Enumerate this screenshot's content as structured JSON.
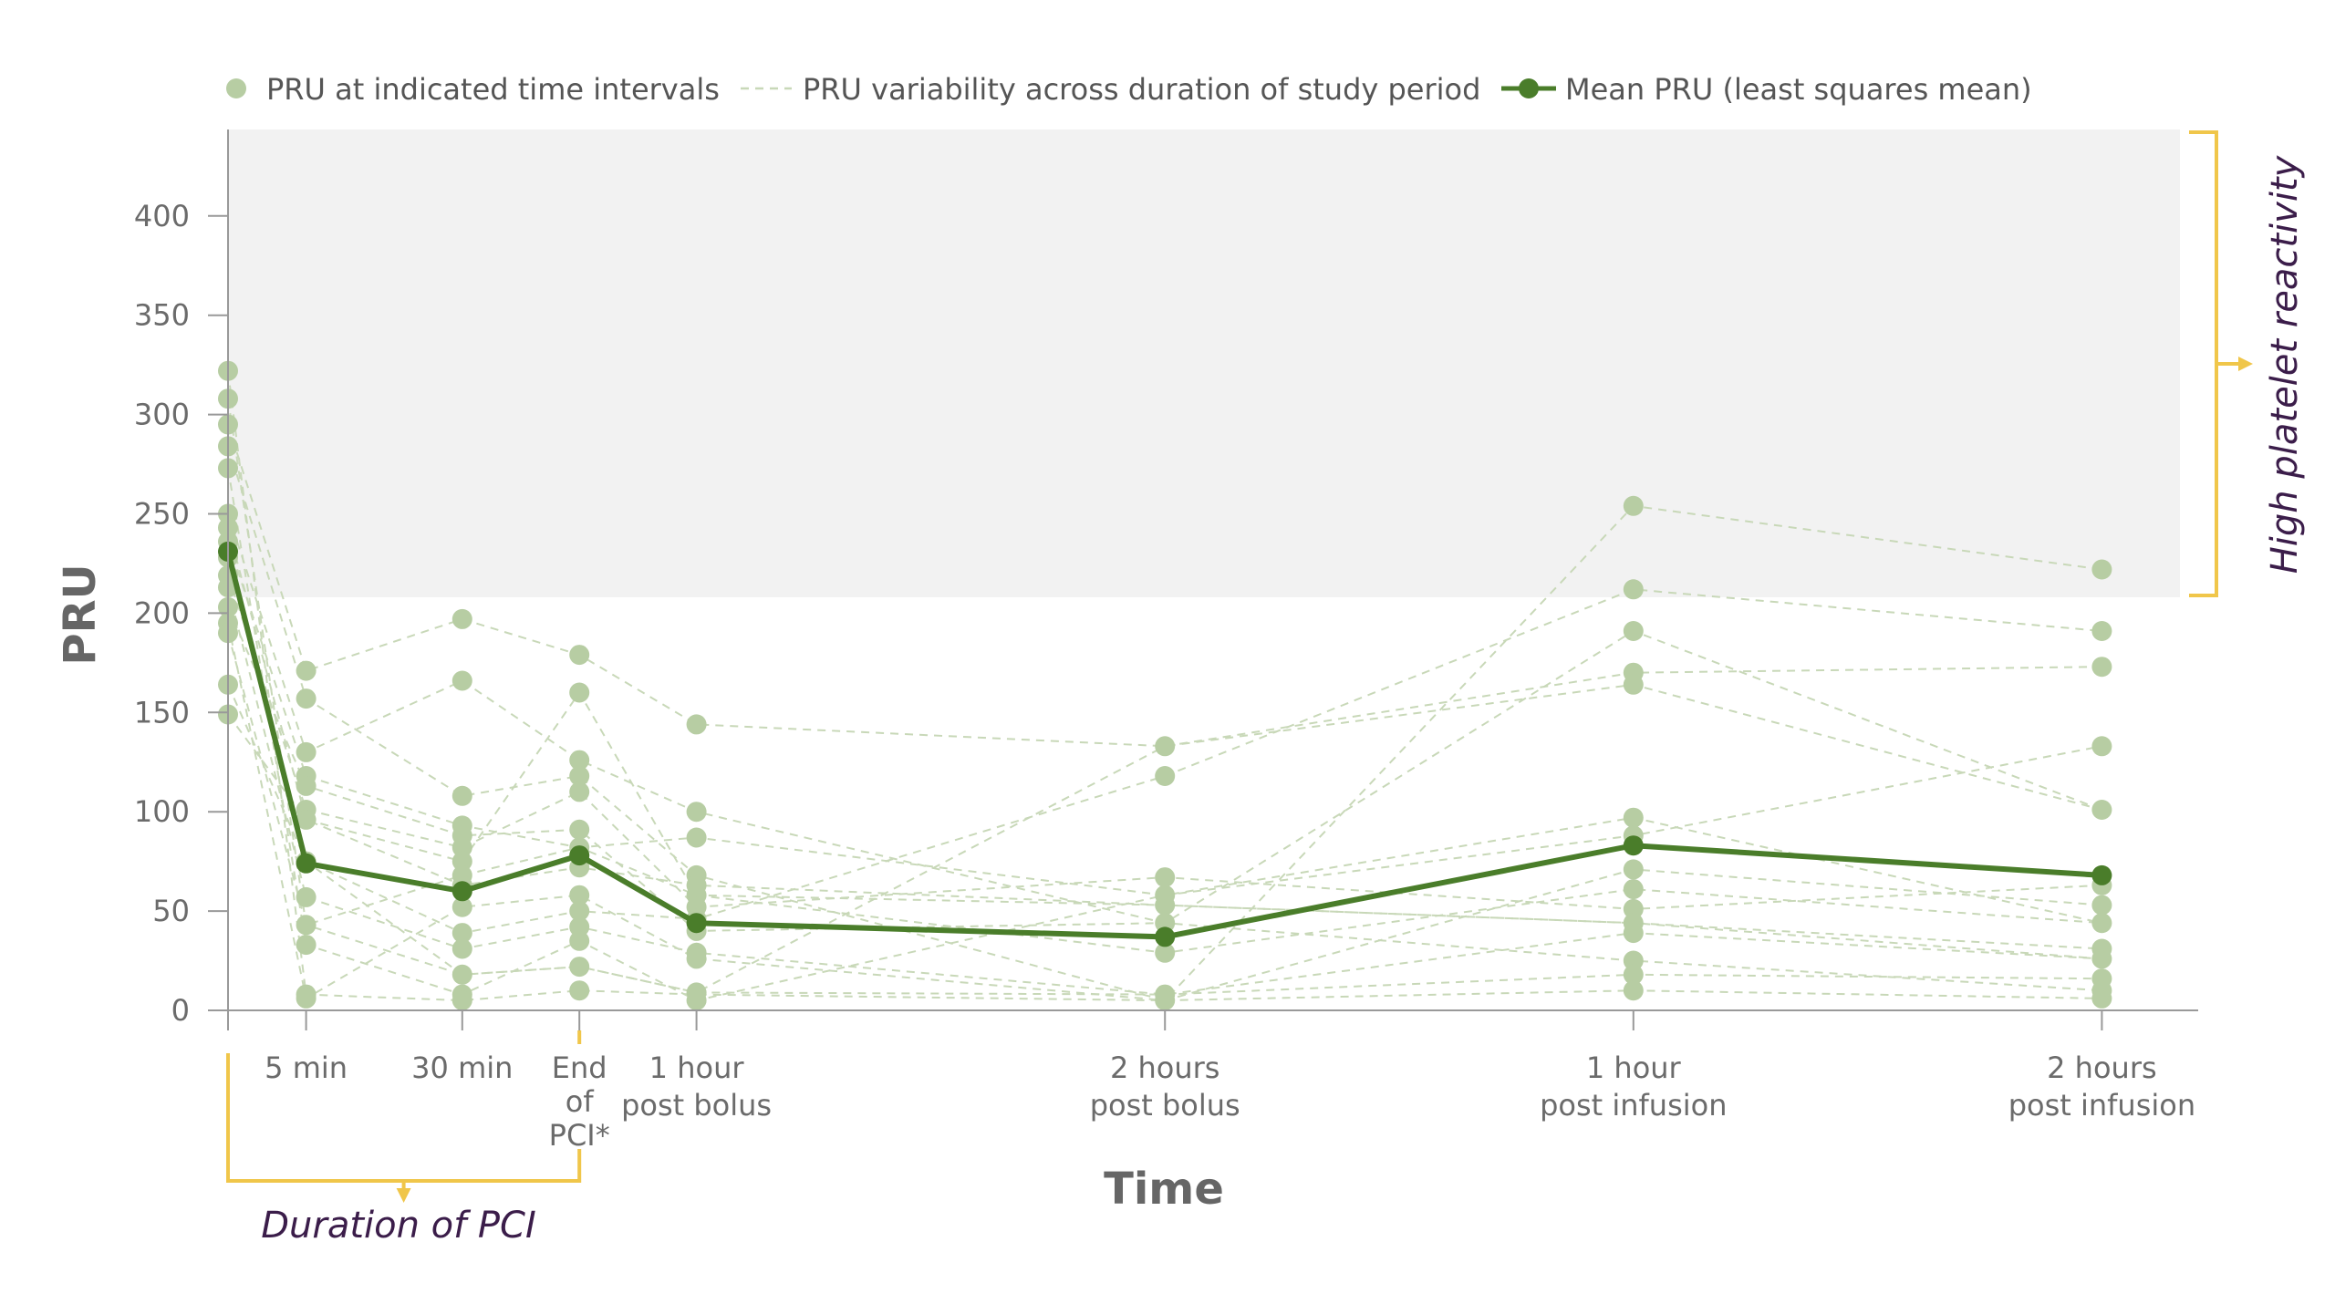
{
  "chart_data": {
    "type": "scatter",
    "legend": {
      "placement": "top",
      "items": [
        {
          "label": "PRU at indicated time intervals",
          "kind": "dot"
        },
        {
          "label": "PRU variability across duration of study period",
          "kind": "dashed-line"
        },
        {
          "label": "Mean PRU (least squares mean)",
          "kind": "line-dot"
        }
      ]
    },
    "xlabel": "Time",
    "ylabel": "PRU",
    "ylim": [
      0,
      440
    ],
    "yticks": [
      "0",
      "50",
      "100",
      "150",
      "200",
      "250",
      "300",
      "350",
      "400"
    ],
    "grid": false,
    "categories": [
      {
        "lines": [
          ""
        ],
        "pos": 0
      },
      {
        "lines": [
          "5 min"
        ],
        "pos": 0.5
      },
      {
        "lines": [
          "30 min"
        ],
        "pos": 1.5
      },
      {
        "lines": [
          "End",
          "of",
          "PCI*"
        ],
        "pos": 2.25
      },
      {
        "lines": [
          "1 hour",
          "post bolus"
        ],
        "pos": 3
      },
      {
        "lines": [
          "2 hours",
          "post bolus"
        ],
        "pos": 6
      },
      {
        "lines": [
          "1 hour",
          "post infusion"
        ],
        "pos": 9
      },
      {
        "lines": [
          "2 hours",
          "post infusion"
        ],
        "pos": 12
      }
    ],
    "high_reactivity_threshold": 208,
    "annotations": {
      "high_platelet_reactivity": "High platelet reactivity",
      "duration_of_pci": "Duration of PCI"
    },
    "colors": {
      "points": "#b7cda3",
      "variability": "#c8d8b8",
      "mean": "#4a7d2a",
      "bracket": "#f0c64a",
      "annotation_text": "#3b1d4a",
      "shaded_region": "#f2f2f2"
    },
    "points": [
      [
        322,
        308,
        295,
        284,
        273,
        250,
        243,
        236,
        228,
        219,
        213,
        203,
        195,
        190,
        164,
        149
      ],
      [
        171,
        157,
        130,
        118,
        113,
        101,
        96,
        75,
        57,
        43,
        33,
        8,
        6
      ],
      [
        197,
        166,
        108,
        93,
        88,
        82,
        75,
        68,
        63,
        52,
        39,
        31,
        18,
        8,
        5
      ],
      [
        179,
        160,
        126,
        118,
        110,
        91,
        82,
        72,
        58,
        50,
        42,
        35,
        22,
        10
      ],
      [
        144,
        100,
        87,
        68,
        63,
        58,
        52,
        46,
        40,
        29,
        26,
        9,
        5
      ],
      [
        133,
        118,
        67,
        58,
        53,
        44,
        29,
        8,
        5
      ],
      [
        254,
        212,
        191,
        170,
        164,
        97,
        88,
        71,
        61,
        51,
        44,
        39,
        25,
        18,
        10
      ],
      [
        222,
        191,
        173,
        133,
        101,
        63,
        53,
        44,
        31,
        26,
        16,
        10,
        6
      ]
    ],
    "variability_series": [
      [
        322,
        8,
        5,
        10,
        8,
        5,
        10,
        6
      ],
      [
        308,
        43,
        18,
        22,
        9,
        8,
        18,
        16
      ],
      [
        295,
        171,
        197,
        179,
        144,
        133,
        164,
        101
      ],
      [
        284,
        157,
        108,
        118,
        68,
        5,
        254,
        222
      ],
      [
        273,
        33,
        8,
        35,
        5,
        58,
        88,
        133
      ],
      [
        250,
        130,
        166,
        126,
        100,
        44,
        191,
        101
      ],
      [
        243,
        96,
        63,
        72,
        63,
        53,
        44,
        31
      ],
      [
        236,
        118,
        93,
        82,
        58,
        29,
        61,
        44
      ],
      [
        228,
        75,
        39,
        50,
        46,
        118,
        212,
        191
      ],
      [
        219,
        101,
        82,
        110,
        52,
        67,
        51,
        63
      ],
      [
        213,
        57,
        31,
        42,
        29,
        8,
        39,
        26
      ],
      [
        203,
        113,
        88,
        91,
        40,
        44,
        25,
        10
      ],
      [
        195,
        6,
        52,
        58,
        26,
        5,
        71,
        53
      ],
      [
        190,
        43,
        68,
        82,
        87,
        58,
        97,
        44
      ],
      [
        164,
        75,
        18,
        22,
        9,
        133,
        170,
        173
      ],
      [
        149,
        96,
        75,
        160,
        58,
        53,
        44,
        26
      ]
    ],
    "mean_series": [
      231,
      74,
      60,
      78,
      44,
      37,
      83,
      68
    ]
  }
}
